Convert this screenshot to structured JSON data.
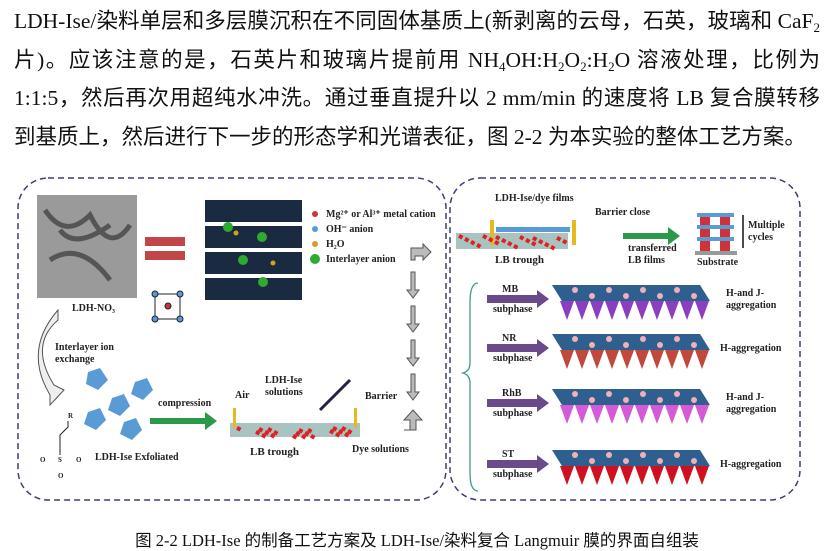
{
  "paragraph": {
    "line1_a": "LDH-Ise/染料单层和多层膜沉积在不同固体基质上(新剥离的云母，石英，玻璃和 CaF",
    "line1_sub": "2",
    "line2_a": "片)。应该注意的是，石英片和玻璃片提前用 NH",
    "line2_b": "4",
    "line2_c": "OH:H",
    "line2_d": "2",
    "line2_e": "O",
    "line2_f": "2",
    "line2_g": ":H",
    "line2_h": "2",
    "line2_i": "O 溶液处理，比例为",
    "line3": "1:1:5，然后再次用超纯水冲洗。通过垂直提升以 2 mm/min 的速度将 LB 复合膜转移",
    "line4": "到基质上，然后进行下一步的形态学和光谱表征，图 2-2 为本实验的整体工艺方案。"
  },
  "figure": {
    "left": {
      "sem_label": "LDH-NO₃",
      "legend": [
        "Mg²⁺ or Al³⁺ metal cation",
        "OH⁻ anion",
        "H₂O",
        "Interlayer anion"
      ],
      "legend_colors": [
        "#d0323a",
        "#5b9bd5",
        "#d4a020",
        "#2eaa2e"
      ],
      "ion_exchange": [
        "Interlayer ion",
        "exchange"
      ],
      "exfoliated": "LDH-Ise Exfoliated",
      "compression": "compression",
      "air": "Air",
      "solutions": [
        "LDH-Ise",
        "solutions"
      ],
      "barrier": "Barrier",
      "trough": "LB trough",
      "dye": "Dye solutions",
      "molecule": {
        "r": "R",
        "o1": "O",
        "o2": "O",
        "o3": "O",
        "s": "S"
      }
    },
    "right": {
      "films": "LDH-Ise/dye films",
      "barrier_close": "Barrier close",
      "trough": "LB trough",
      "transferred": [
        "transferred",
        "LB films"
      ],
      "substrate": "Substrate",
      "cycles": [
        "Multiple",
        "cycles"
      ],
      "rows": [
        {
          "dye": "MB",
          "sub": "subphase",
          "agg": [
            "H-and J-",
            "aggregation"
          ],
          "color": "#8a3fc0"
        },
        {
          "dye": "NR",
          "sub": "subphase",
          "agg": [
            "H-aggregation"
          ],
          "color": "#c0483c"
        },
        {
          "dye": "RhB",
          "sub": "subphase",
          "agg": [
            "H-and J-",
            "aggregation"
          ],
          "color": "#d45ad8"
        },
        {
          "dye": "ST",
          "sub": "subphase",
          "agg": [
            "H-aggregation"
          ],
          "color": "#d01020"
        }
      ]
    }
  },
  "caption": "图 2-2 LDH-Ise 的制备工艺方案及 LDH-Ise/染料复合 Langmuir 膜的界面自组装"
}
